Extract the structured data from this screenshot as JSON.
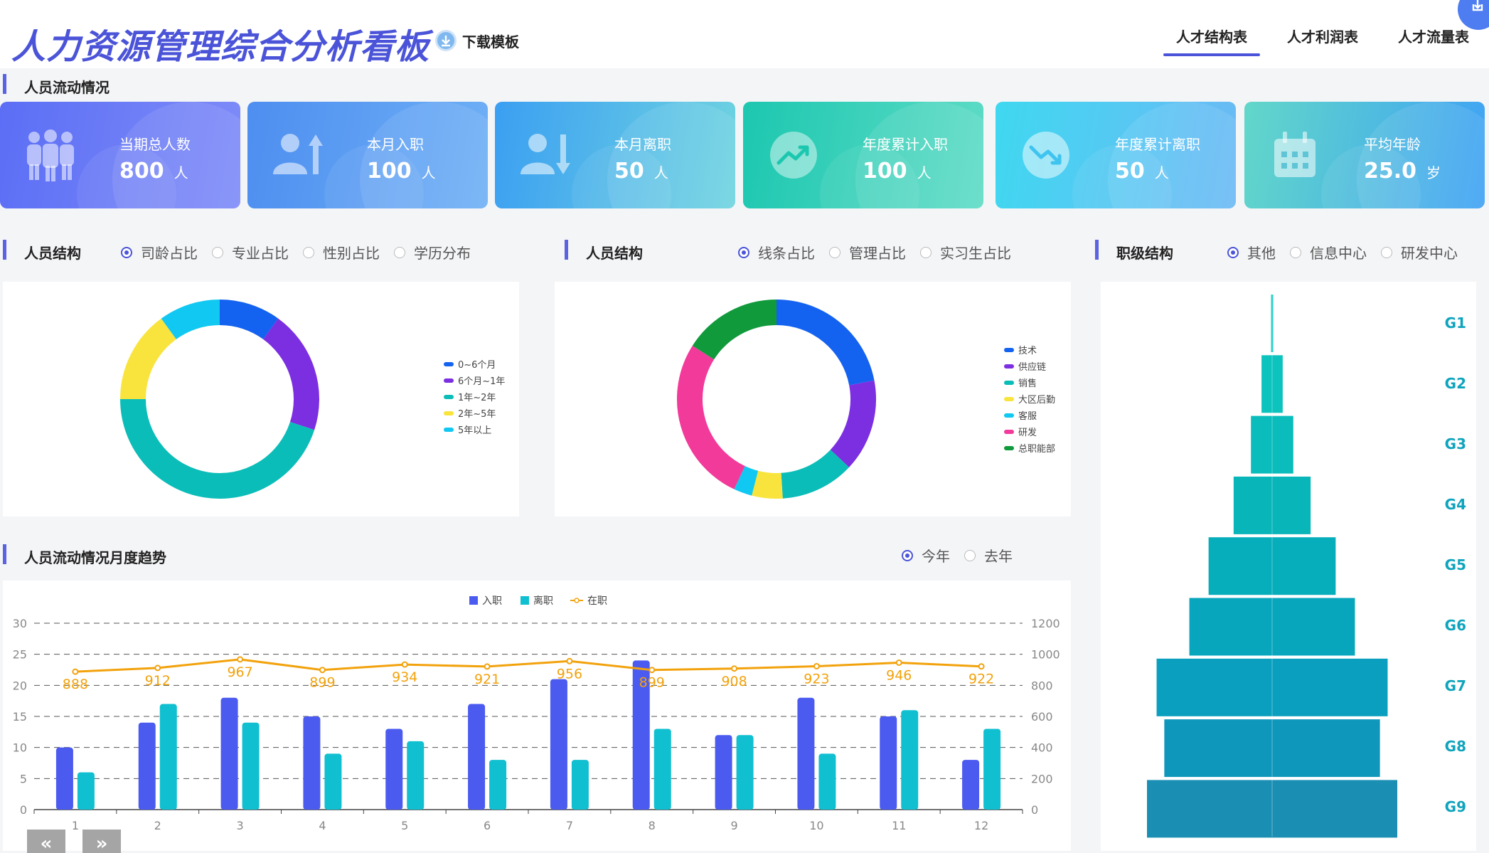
{
  "header": {
    "title": "人力资源管理综合分析看板",
    "download_label": "下载模板",
    "tabs": [
      {
        "label": "人才结构表",
        "active": true
      },
      {
        "label": "人才利润表",
        "active": false
      },
      {
        "label": "人才流量表",
        "active": false
      }
    ]
  },
  "flow": {
    "title": "人员流动情况",
    "cards": [
      {
        "label": "当期总人数",
        "value": "800",
        "unit": "人",
        "icon": "people-group-icon",
        "gradient": [
          "#5b6ef5",
          "#7f8cf8"
        ]
      },
      {
        "label": "本月入职",
        "value": "100",
        "unit": "人",
        "icon": "user-arrow-up-icon",
        "gradient": [
          "#4d8ef0",
          "#6fb0f6"
        ]
      },
      {
        "label": "本月离职",
        "value": "50",
        "unit": "人",
        "icon": "user-arrow-down-icon",
        "gradient": [
          "#3b9ff2",
          "#6fd4e0"
        ]
      },
      {
        "label": "年度累计入职",
        "value": "100",
        "unit": "人",
        "icon": "trend-up-icon",
        "gradient": [
          "#1cc7b0",
          "#5fdcc6"
        ]
      },
      {
        "label": "年度累计离职",
        "value": "50",
        "unit": "人",
        "icon": "trend-down-icon",
        "gradient": [
          "#3fd8f0",
          "#6cb9f5"
        ]
      },
      {
        "label": "平均年龄",
        "value": "25.0",
        "unit": "岁",
        "icon": "calendar-icon",
        "gradient": [
          "#62d7c9",
          "#3fa2f4"
        ]
      }
    ]
  },
  "structure1": {
    "title": "人员结构",
    "options": [
      {
        "label": "司龄占比",
        "checked": true
      },
      {
        "label": "专业占比",
        "checked": false
      },
      {
        "label": "性别占比",
        "checked": false
      },
      {
        "label": "学历分布",
        "checked": false
      }
    ]
  },
  "structure2": {
    "title": "人员结构",
    "options": [
      {
        "label": "线条占比",
        "checked": true
      },
      {
        "label": "管理占比",
        "checked": false
      },
      {
        "label": "实习生占比",
        "checked": false
      }
    ]
  },
  "level": {
    "title": "职级结构",
    "options": [
      {
        "label": "其他",
        "checked": true
      },
      {
        "label": "信息中心",
        "checked": false
      },
      {
        "label": "研发中心",
        "checked": false
      }
    ]
  },
  "trend": {
    "title": "人员流动情况月度趋势",
    "options": [
      {
        "label": "今年",
        "checked": true
      },
      {
        "label": "去年",
        "checked": false
      }
    ],
    "prev_label": "«",
    "next_label": "»"
  },
  "chart_data": [
    {
      "type": "pie",
      "style": "donut",
      "labels": [
        "0~6个月",
        "6个月~1年",
        "1年~2年",
        "2年~5年",
        "5年以上"
      ],
      "values": [
        10,
        20,
        45,
        15,
        10
      ],
      "colors": [
        "#1462f0",
        "#7b2fe0",
        "#0bbdb8",
        "#f9e43d",
        "#10c8f2"
      ],
      "legend": "right"
    },
    {
      "type": "pie",
      "style": "donut",
      "labels": [
        "技术",
        "供应链",
        "销售",
        "大区后勤",
        "客服",
        "研发",
        "总职能部"
      ],
      "values": [
        22,
        15,
        12,
        5,
        3,
        27,
        16
      ],
      "colors": [
        "#1462f0",
        "#7b2fe0",
        "#0bbdb8",
        "#f9e43d",
        "#10c8f2",
        "#f23a9a",
        "#109a3b"
      ],
      "legend": "right"
    },
    {
      "type": "bar",
      "orientation": "horizontal-centered",
      "categories": [
        "G1",
        "G2",
        "G3",
        "G4",
        "G5",
        "G6",
        "G7",
        "G8",
        "G9"
      ],
      "values": [
        1,
        11,
        22,
        40,
        66,
        86,
        120,
        112,
        130
      ],
      "colors": [
        "#0cc9be",
        "#0cc4bd",
        "#0abcbb",
        "#08b5b9",
        "#06adbb",
        "#07a6bd",
        "#0a9fbe",
        "#0f97bb",
        "#1a8fb3"
      ]
    },
    {
      "type": "bar",
      "categories": [
        "1",
        "2",
        "3",
        "4",
        "5",
        "6",
        "7",
        "8",
        "9",
        "10",
        "11",
        "12"
      ],
      "series": [
        {
          "name": "入职",
          "type": "bar",
          "axis": "left",
          "color": "#4b5bf0",
          "values": [
            10,
            14,
            18,
            15,
            13,
            17,
            21,
            24,
            12,
            18,
            15,
            8
          ]
        },
        {
          "name": "离职",
          "type": "bar",
          "axis": "left",
          "color": "#10bfd0",
          "values": [
            6,
            17,
            14,
            9,
            11,
            8,
            8,
            13,
            12,
            9,
            16,
            13
          ]
        },
        {
          "name": "在职",
          "type": "line",
          "axis": "right",
          "color": "#f2a20c",
          "values": [
            888,
            912,
            967,
            899,
            934,
            921,
            956,
            899,
            908,
            923,
            946,
            922
          ]
        }
      ],
      "ylim_left": [
        0,
        30
      ],
      "yticks_left": [
        0,
        5,
        10,
        15,
        20,
        25,
        30
      ],
      "ylim_right": [
        0,
        1200
      ],
      "yticks_right": [
        0,
        200,
        400,
        600,
        800,
        1000,
        1200
      ],
      "grid": "dashed",
      "legend": "top-center"
    }
  ]
}
